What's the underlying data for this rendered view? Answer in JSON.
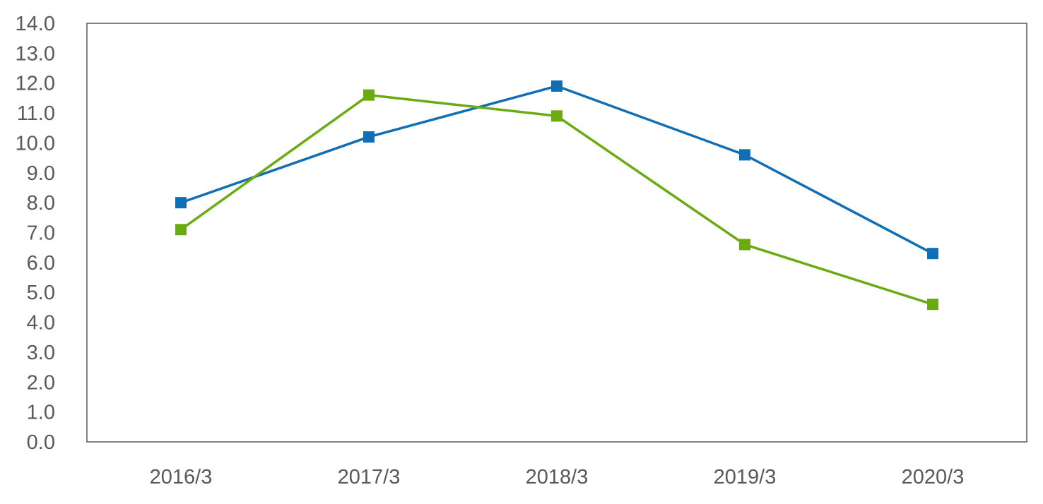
{
  "chart_data": {
    "type": "line",
    "title": "",
    "xlabel": "",
    "ylabel": "",
    "categories": [
      "2016/3",
      "2017/3",
      "2018/3",
      "2019/3",
      "2020/3"
    ],
    "ylim": [
      0,
      14
    ],
    "y_ticks": [
      "0.0",
      "1.0",
      "2.0",
      "3.0",
      "4.0",
      "5.0",
      "6.0",
      "7.0",
      "8.0",
      "9.0",
      "10.0",
      "11.0",
      "12.0",
      "13.0",
      "14.0"
    ],
    "grid": false,
    "legend": "none",
    "series": [
      {
        "color": "#0F6EB4",
        "marker": "square",
        "values": [
          8.0,
          10.2,
          11.9,
          9.6,
          6.3
        ]
      },
      {
        "color": "#6AAB12",
        "marker": "square",
        "values": [
          7.1,
          11.6,
          10.9,
          6.6,
          4.6
        ]
      }
    ]
  }
}
